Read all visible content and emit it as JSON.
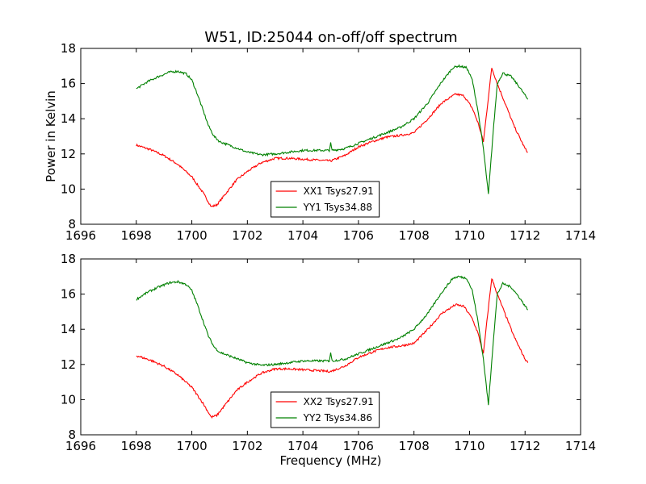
{
  "figure_title": "W51, ID:25044 on-off/off spectrum",
  "chart_data": [
    {
      "type": "line",
      "title": "W51, ID:25044 on-off/off spectrum",
      "xlabel": "",
      "ylabel": "Power in Kelvin",
      "xlim": [
        1696,
        1714
      ],
      "ylim": [
        8,
        18
      ],
      "xticks": [
        "1696",
        "1698",
        "1700",
        "1702",
        "1704",
        "1706",
        "1708",
        "1710",
        "1712",
        "1714"
      ],
      "yticks": [
        "8",
        "10",
        "12",
        "14",
        "16",
        "18"
      ],
      "legend_position": "lower-center",
      "series": [
        {
          "name": "XX1 Tsys27.91",
          "color": "#ff0000",
          "x": [
            1698.0,
            1698.5,
            1699.0,
            1699.5,
            1700.0,
            1700.4,
            1700.7,
            1700.9,
            1701.2,
            1701.6,
            1702.0,
            1702.5,
            1703.0,
            1703.5,
            1704.0,
            1704.5,
            1705.0,
            1705.5,
            1706.0,
            1706.5,
            1707.0,
            1707.5,
            1708.0,
            1708.5,
            1709.0,
            1709.5,
            1709.8,
            1710.1,
            1710.3,
            1710.5,
            1710.65,
            1710.8,
            1711.0,
            1711.3,
            1711.6,
            1712.0,
            1712.1
          ],
          "y": [
            12.5,
            12.25,
            11.9,
            11.4,
            10.7,
            9.8,
            9.0,
            9.1,
            9.7,
            10.5,
            11.0,
            11.5,
            11.75,
            11.75,
            11.7,
            11.65,
            11.6,
            11.9,
            12.4,
            12.7,
            12.95,
            13.05,
            13.2,
            14.0,
            14.9,
            15.4,
            15.3,
            14.6,
            13.8,
            12.7,
            14.8,
            16.9,
            16.0,
            14.8,
            13.6,
            12.3,
            12.1
          ]
        },
        {
          "name": "YY1 Tsys34.88",
          "color": "#008000",
          "x": [
            1698.0,
            1698.4,
            1698.8,
            1699.2,
            1699.5,
            1699.8,
            1700.0,
            1700.2,
            1700.4,
            1700.6,
            1700.8,
            1701.0,
            1701.5,
            1702.0,
            1702.5,
            1703.0,
            1703.5,
            1704.0,
            1704.5,
            1704.95,
            1705.0,
            1705.05,
            1705.5,
            1706.0,
            1706.5,
            1707.0,
            1707.5,
            1708.0,
            1708.5,
            1709.0,
            1709.4,
            1709.6,
            1709.9,
            1710.1,
            1710.3,
            1710.5,
            1710.68,
            1710.85,
            1711.0,
            1711.2,
            1711.5,
            1711.8,
            1712.1
          ],
          "y": [
            15.7,
            16.1,
            16.4,
            16.65,
            16.7,
            16.55,
            16.2,
            15.4,
            14.5,
            13.6,
            13.0,
            12.7,
            12.4,
            12.1,
            11.95,
            12.0,
            12.1,
            12.2,
            12.2,
            12.2,
            12.6,
            12.2,
            12.3,
            12.6,
            12.9,
            13.2,
            13.5,
            14.0,
            14.9,
            16.1,
            16.9,
            17.0,
            16.9,
            16.2,
            14.5,
            12.3,
            9.7,
            13.2,
            16.0,
            16.6,
            16.4,
            15.8,
            15.1
          ]
        }
      ]
    },
    {
      "type": "line",
      "title": "",
      "xlabel": "Frequency (MHz)",
      "ylabel": "",
      "xlim": [
        1696,
        1714
      ],
      "ylim": [
        8,
        18
      ],
      "xticks": [
        "1696",
        "1698",
        "1700",
        "1702",
        "1704",
        "1706",
        "1708",
        "1710",
        "1712",
        "1714"
      ],
      "yticks": [
        "8",
        "10",
        "12",
        "14",
        "16",
        "18"
      ],
      "legend_position": "lower-center",
      "series": [
        {
          "name": "XX2 Tsys27.91",
          "color": "#ff0000",
          "x": [
            1698.0,
            1698.5,
            1699.0,
            1699.5,
            1700.0,
            1700.4,
            1700.7,
            1700.9,
            1701.2,
            1701.6,
            1702.0,
            1702.5,
            1703.0,
            1703.5,
            1704.0,
            1704.5,
            1705.0,
            1705.5,
            1706.0,
            1706.5,
            1707.0,
            1707.5,
            1708.0,
            1708.5,
            1709.0,
            1709.5,
            1709.8,
            1710.1,
            1710.3,
            1710.5,
            1710.65,
            1710.8,
            1711.0,
            1711.3,
            1711.6,
            1712.0,
            1712.1
          ],
          "y": [
            12.5,
            12.25,
            11.9,
            11.4,
            10.7,
            9.8,
            9.0,
            9.1,
            9.7,
            10.5,
            11.0,
            11.5,
            11.75,
            11.75,
            11.7,
            11.65,
            11.6,
            11.9,
            12.4,
            12.7,
            12.95,
            13.05,
            13.2,
            14.0,
            14.9,
            15.4,
            15.3,
            14.6,
            13.8,
            12.6,
            14.8,
            16.9,
            16.0,
            14.8,
            13.6,
            12.3,
            12.1
          ]
        },
        {
          "name": "YY2 Tsys34.86",
          "color": "#008000",
          "x": [
            1698.0,
            1698.4,
            1698.8,
            1699.2,
            1699.5,
            1699.8,
            1700.0,
            1700.2,
            1700.4,
            1700.6,
            1700.8,
            1701.0,
            1701.5,
            1702.0,
            1702.5,
            1703.0,
            1703.5,
            1704.0,
            1704.5,
            1704.95,
            1705.0,
            1705.05,
            1705.5,
            1706.0,
            1706.5,
            1707.0,
            1707.5,
            1708.0,
            1708.5,
            1709.0,
            1709.4,
            1709.6,
            1709.9,
            1710.1,
            1710.3,
            1710.5,
            1710.68,
            1710.85,
            1711.0,
            1711.2,
            1711.5,
            1711.8,
            1712.1
          ],
          "y": [
            15.7,
            16.1,
            16.4,
            16.65,
            16.7,
            16.55,
            16.2,
            15.4,
            14.5,
            13.6,
            13.0,
            12.7,
            12.4,
            12.1,
            11.95,
            12.0,
            12.1,
            12.2,
            12.2,
            12.2,
            12.7,
            12.2,
            12.3,
            12.6,
            12.9,
            13.2,
            13.5,
            14.0,
            14.9,
            16.1,
            16.9,
            17.0,
            16.9,
            16.2,
            14.5,
            12.3,
            9.7,
            13.2,
            16.0,
            16.6,
            16.4,
            15.8,
            15.1
          ]
        }
      ]
    }
  ]
}
